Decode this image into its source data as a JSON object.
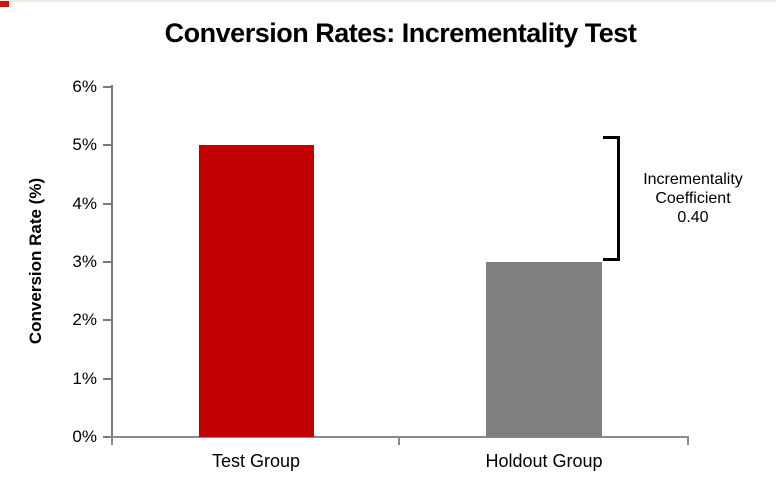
{
  "page": {
    "top_border_color": "#edece2",
    "corner_marker_color": "#d01414"
  },
  "title": "Conversion Rates: Incrementality Test",
  "chart_data": {
    "type": "bar",
    "title": "Conversion Rates: Incrementality Test",
    "xlabel": "",
    "ylabel": "Conversion Rate (%)",
    "categories": [
      "Test Group",
      "Holdout Group"
    ],
    "values": [
      5.0,
      3.0
    ],
    "unit": "%",
    "bar_colors": [
      "#c00000",
      "#808080"
    ],
    "ylim": [
      0,
      6
    ],
    "ytick_step": 1,
    "ytick_labels": [
      "0%",
      "1%",
      "2%",
      "3%",
      "4%",
      "5%",
      "6%"
    ],
    "grid": false,
    "legend": null,
    "annotation": {
      "lines": [
        "Incrementality",
        "Coefficient",
        "0.40"
      ],
      "bracket_from_value": 5.0,
      "bracket_to_value": 3.0
    }
  }
}
